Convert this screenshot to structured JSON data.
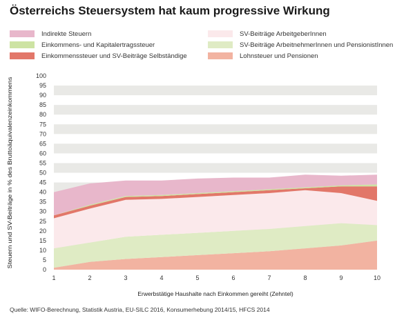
{
  "chart_data": {
    "type": "area",
    "title": "Österreichs Steuersystem hat kaum progressive Wirkung",
    "xlabel": "Erwerbstätige Haushalte nach Einkommen gereiht (Zehntel)",
    "ylabel": "Steuern und SV-Beiträge in % des Bruttoäquivalenzeinkommens",
    "x": [
      1,
      2,
      3,
      4,
      5,
      6,
      7,
      8,
      9,
      10
    ],
    "xticks": [
      "1",
      "2",
      "3",
      "4",
      "5",
      "6",
      "7",
      "8",
      "9",
      "10"
    ],
    "ylim": [
      0,
      100
    ],
    "yticks": [
      "0",
      "5",
      "10",
      "15",
      "20",
      "25",
      "30",
      "35",
      "40",
      "45",
      "50",
      "55",
      "60",
      "65",
      "70",
      "75",
      "80",
      "85",
      "90",
      "95",
      "100"
    ],
    "grid": "alternating horizontal bands",
    "stacking": "stacked, bottom to top",
    "series": [
      {
        "name": "Lohnsteuer und Pensionen",
        "color": "#f2b3a1",
        "values": [
          1.0,
          4.0,
          5.5,
          6.5,
          7.5,
          8.5,
          9.5,
          11.0,
          12.5,
          15.0
        ]
      },
      {
        "name": "SV-Beiträge ArbeitnehmerInnen und PensionistInnen",
        "color": "#dfebc4",
        "values": [
          10.0,
          10.0,
          11.5,
          11.5,
          11.5,
          11.5,
          11.5,
          11.5,
          11.5,
          8.0
        ]
      },
      {
        "name": "SV-Beiträge ArbeitgeberInnen",
        "color": "#fbe9eb",
        "values": [
          15.5,
          17.5,
          19.0,
          18.5,
          18.5,
          18.5,
          18.5,
          18.5,
          15.5,
          12.5
        ]
      },
      {
        "name": "Einkommenssteuer und SV-Beiträge Selbständige",
        "color": "#e27769",
        "values": [
          1.5,
          1.5,
          1.5,
          1.5,
          1.5,
          1.5,
          1.5,
          1.0,
          3.5,
          7.5
        ]
      },
      {
        "name": "Einkommens- und Kapitalertragssteuer",
        "color": "#cde3a3",
        "values": [
          0.0,
          0.5,
          0.5,
          0.5,
          0.5,
          0.5,
          0.5,
          0.5,
          0.5,
          1.0
        ]
      },
      {
        "name": "Indirekte Steuern",
        "color": "#e8b7cb",
        "values": [
          12.0,
          11.0,
          8.0,
          7.5,
          7.5,
          7.0,
          6.0,
          6.5,
          5.0,
          5.0
        ]
      }
    ],
    "legend": {
      "placement": "top, two columns",
      "order": [
        "Indirekte Steuern",
        "Einkommens- und Kapitalertragssteuer",
        "Einkommenssteuer und SV-Beiträge Selbständige",
        "SV-Beiträge ArbeitgeberInnen",
        "SV-Beiträge ArbeitnehmerInnen und PensionistInnen",
        "Lohnsteuer und Pensionen"
      ]
    },
    "source": "Quelle: WIFO-Berechnung, Statistik Austria, EU-SILC 2016, Konsumerhebung 2014/15, HFCS 2014"
  }
}
